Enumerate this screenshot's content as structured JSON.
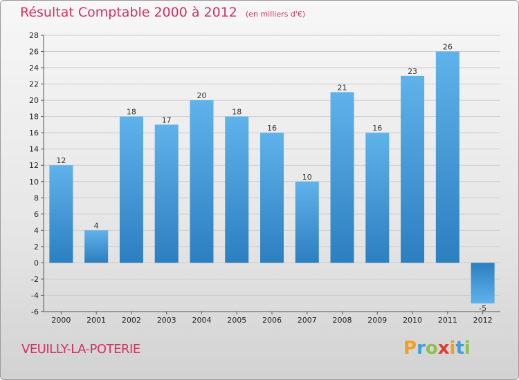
{
  "header": {
    "title": "Résultat Comptable 2000 à 2012",
    "subtitle": "(en milliers d'€)"
  },
  "footer": {
    "place": "VEUILLY-LA-POTERIE",
    "logo": "Proxiti"
  },
  "colors": {
    "title": "#d2315e",
    "bar_light": "#5fb2ea",
    "bar_dark": "#2c7fc0",
    "grid": "#cccccc",
    "logo_letters": [
      "#f0a020",
      "#3aa0e0",
      "#8bc34a",
      "#e53935",
      "#f0a020",
      "#3aa0e0",
      "#8bc34a"
    ]
  },
  "chart_data": {
    "type": "bar",
    "title": "Résultat Comptable 2000 à 2012",
    "subtitle": "(en milliers d'€)",
    "categories": [
      "2000",
      "2001",
      "2002",
      "2003",
      "2004",
      "2005",
      "2006",
      "2007",
      "2008",
      "2009",
      "2010",
      "2011",
      "2012"
    ],
    "values": [
      12,
      4,
      18,
      17,
      20,
      18,
      16,
      10,
      21,
      16,
      23,
      26,
      -5
    ],
    "xlabel": "",
    "ylabel": "",
    "ylim": [
      -6,
      28
    ],
    "yticks": [
      -6,
      -4,
      -2,
      0,
      2,
      4,
      6,
      8,
      10,
      12,
      14,
      16,
      18,
      20,
      22,
      24,
      26,
      28
    ],
    "grid": true,
    "legend": "none"
  }
}
